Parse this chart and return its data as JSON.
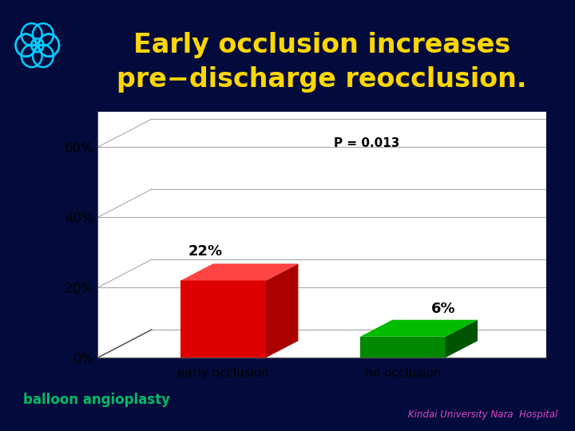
{
  "title_line1": "Early occlusion increases",
  "title_line2": "pre−discharge reocclusion.",
  "background_color": "#020B3B",
  "chart_bg": "#ffffff",
  "bar1_label": "early occlusion",
  "bar2_label": "no occlusion",
  "bar1_value": 22,
  "bar2_value": 6,
  "bar1_face_color": "#dd0000",
  "bar1_top_color": "#ff4444",
  "bar1_side_color": "#aa0000",
  "bar2_face_color": "#008800",
  "bar2_top_color": "#00bb00",
  "bar2_side_color": "#005500",
  "p_value_text": "P = 0.013",
  "yticks": [
    0,
    20,
    40,
    60
  ],
  "ytick_labels": [
    "0%",
    "20%",
    "40%",
    "60%"
  ],
  "title_color": "#FFD700",
  "title_fontsize": 24,
  "balloon_text": "balloon angioplasty",
  "balloon_color": "#00bb66",
  "kindai_text": "Kindai University Nara  Hospital",
  "kindai_color": "#dd44cc",
  "logo_color": "#00ccff",
  "logo_bg": "#0a1a6e",
  "grid_line_color": "#aaaaaa",
  "axis_line_color": "#555555",
  "label_fontsize": 11,
  "tick_fontsize": 12
}
